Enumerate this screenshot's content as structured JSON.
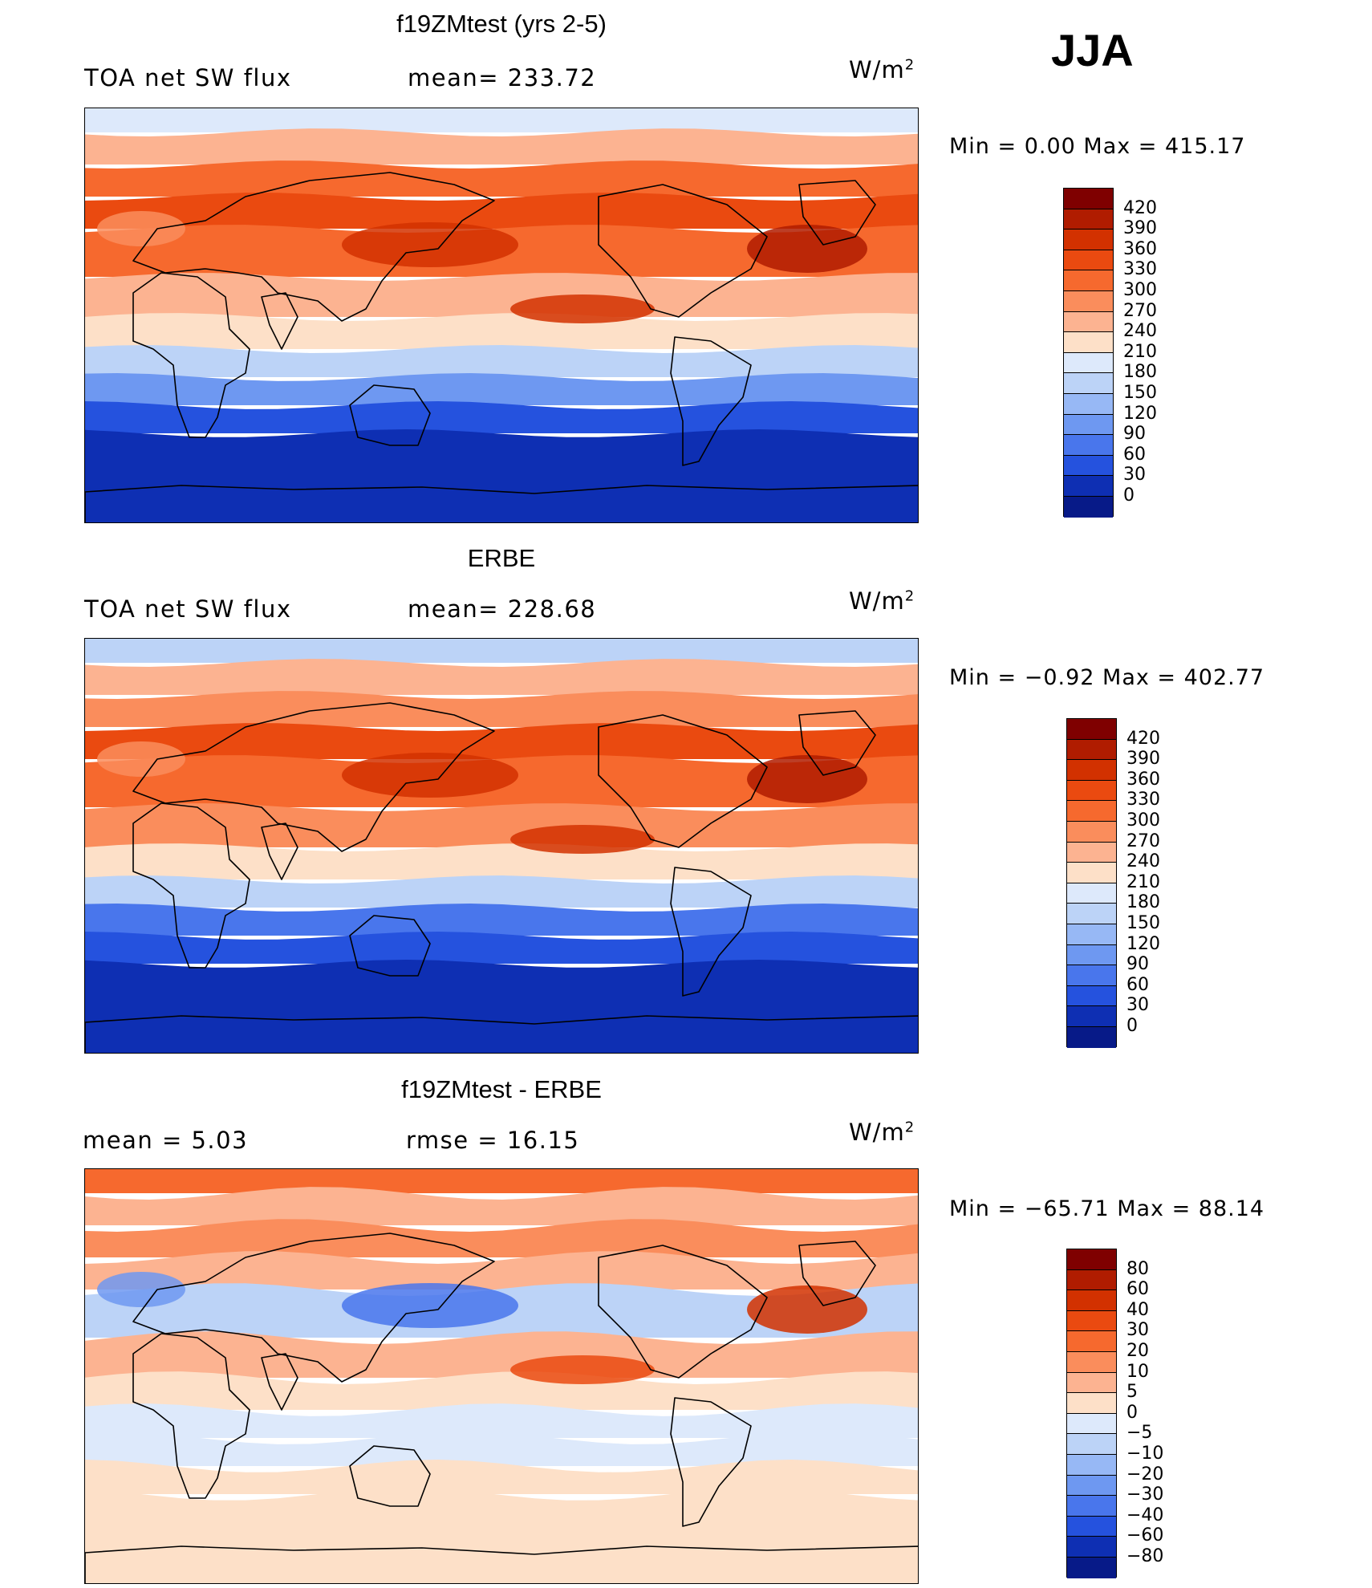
{
  "season": "JJA",
  "panels": [
    {
      "title": "f19ZMtest (yrs 2-5)",
      "left_label": "TOA net SW flux",
      "mid_label": "mean= 233.72",
      "units_base": "W/m",
      "units_exp": "2",
      "minmax": "Min =    0.00  Max  =  415.17",
      "colorbar": {
        "labels": [
          "420",
          "390",
          "360",
          "330",
          "300",
          "270",
          "240",
          "210",
          "180",
          "150",
          "120",
          "90",
          "60",
          "30",
          "0"
        ],
        "colors": [
          "#7f0000",
          "#b01c00",
          "#d23100",
          "#ea4a10",
          "#f6692e",
          "#fa8d5c",
          "#fcb391",
          "#fde0c8",
          "#dde9fb",
          "#bcd3f7",
          "#97b8f5",
          "#6e98f1",
          "#4976ec",
          "#2552de",
          "#0e2fb3",
          "#071a88"
        ]
      },
      "zones": [
        "#dde9fb",
        "#fcb391",
        "#f6692e",
        "#ea4a10",
        "#f6692e",
        "#fcb391",
        "#fde0c8",
        "#bcd3f7",
        "#6e98f1",
        "#2552de",
        "#0e2fb3"
      ]
    },
    {
      "title": "ERBE",
      "left_label": "TOA net SW flux",
      "mid_label": "mean= 228.68",
      "units_base": "W/m",
      "units_exp": "2",
      "minmax": "Min =  −0.92  Max  =  402.77",
      "colorbar": {
        "labels": [
          "420",
          "390",
          "360",
          "330",
          "300",
          "270",
          "240",
          "210",
          "180",
          "150",
          "120",
          "90",
          "60",
          "30",
          "0"
        ],
        "colors": [
          "#7f0000",
          "#b01c00",
          "#d23100",
          "#ea4a10",
          "#f6692e",
          "#fa8d5c",
          "#fcb391",
          "#fde0c8",
          "#dde9fb",
          "#bcd3f7",
          "#97b8f5",
          "#6e98f1",
          "#4976ec",
          "#2552de",
          "#0e2fb3",
          "#071a88"
        ]
      },
      "zones": [
        "#bcd3f7",
        "#fcb391",
        "#fa8d5c",
        "#ea4a10",
        "#f6692e",
        "#fa8d5c",
        "#fde0c8",
        "#bcd3f7",
        "#4976ec",
        "#2552de",
        "#0e2fb3"
      ]
    },
    {
      "title": "f19ZMtest - ERBE",
      "left_label": "mean =     5.03",
      "mid_label": "rmse  =    16.15",
      "units_base": "W/m",
      "units_exp": "2",
      "minmax": "Min  = −65.71  Max  =   88.14",
      "colorbar": {
        "labels": [
          "80",
          "60",
          "40",
          "30",
          "20",
          "10",
          "5",
          "0",
          "−5",
          "−10",
          "−20",
          "−30",
          "−40",
          "−60",
          "−80"
        ],
        "colors": [
          "#7f0000",
          "#b01c00",
          "#d23100",
          "#ea4a10",
          "#f6692e",
          "#fa8d5c",
          "#fcb391",
          "#fde0c8",
          "#dde9fb",
          "#bcd3f7",
          "#97b8f5",
          "#6e98f1",
          "#4976ec",
          "#2552de",
          "#0e2fb3",
          "#071a88"
        ]
      },
      "zones": [
        "#f6692e",
        "#fcb391",
        "#fa8d5c",
        "#fcb391",
        "#bcd3f7",
        "#fcb391",
        "#fde0c8",
        "#dde9fb",
        "#dde9fb",
        "#fde0c8",
        "#fde0c8"
      ]
    }
  ]
}
